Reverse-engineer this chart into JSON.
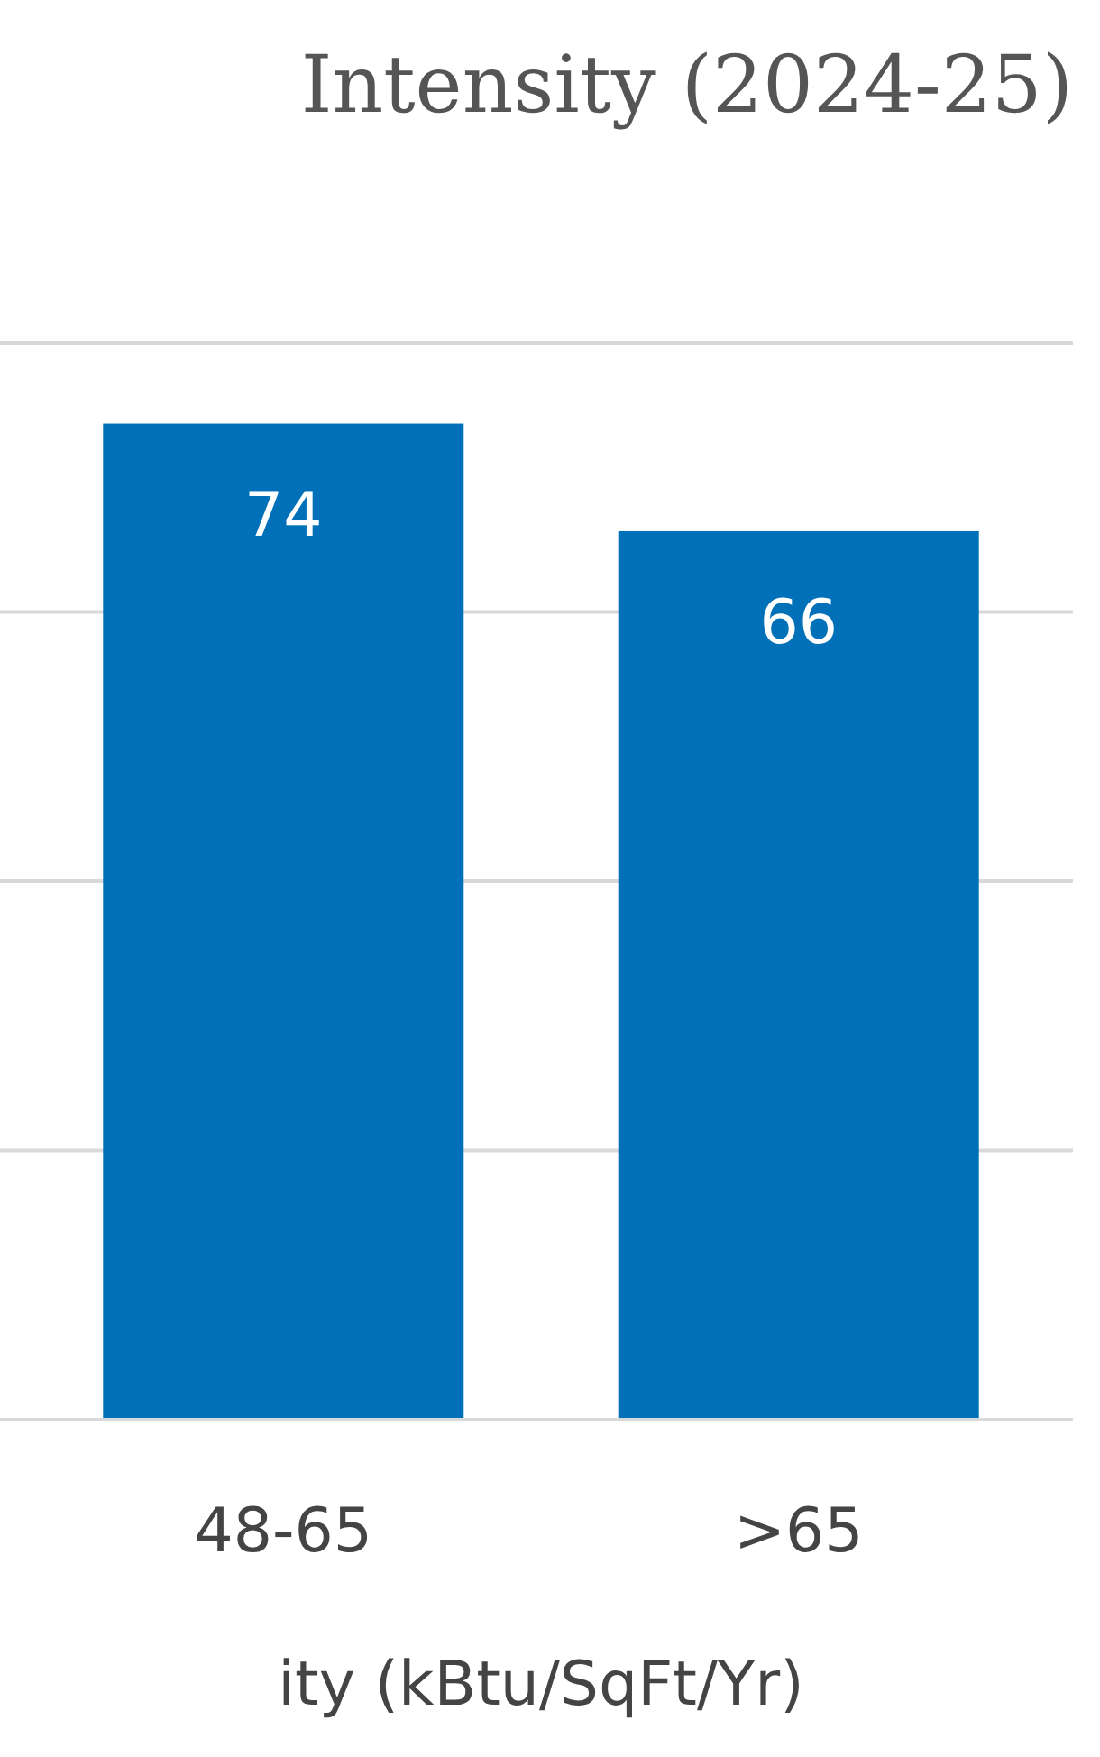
{
  "chart_data": {
    "type": "bar",
    "title": "Intensity (2024-25)",
    "xlabel": "ity (kBtu/SqFt/Yr)",
    "categories": [
      "48-65",
      ">65"
    ],
    "values": [
      74,
      66
    ],
    "color": "#0070b8",
    "ylim": [
      0,
      80
    ],
    "yticks": [
      {
        "value": 0,
        "label": null
      },
      {
        "value": 20,
        "label": null
      },
      {
        "value": 40,
        "label": null
      },
      {
        "value": 60,
        "label": null
      },
      {
        "value": 80,
        "label": null
      }
    ],
    "grid": "y",
    "tick_labels": "x",
    "data_labels": true
  }
}
